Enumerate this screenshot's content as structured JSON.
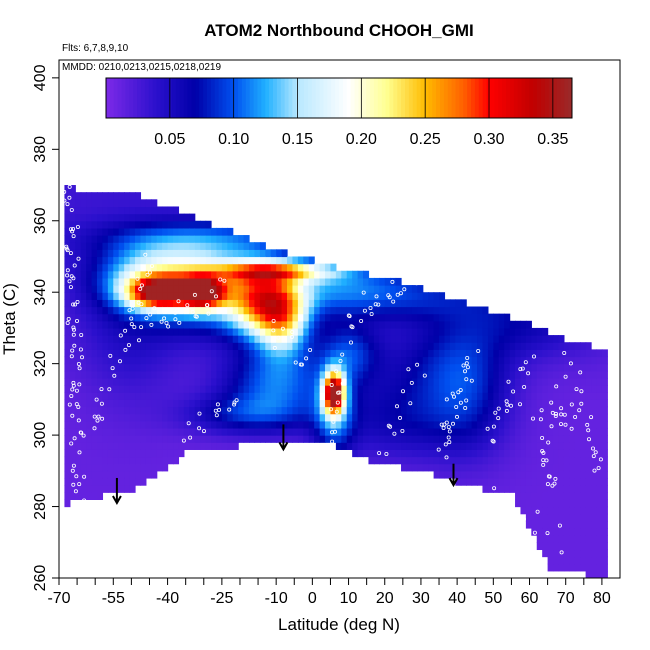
{
  "chart_data": {
    "type": "heatmap",
    "title": "ATOM2 Northbound CHOOH_GMI",
    "xlabel": "Latitude (deg N)",
    "ylabel": "Theta (C)",
    "xlim": [
      -70,
      85
    ],
    "ylim": [
      260,
      405
    ],
    "x_ticks": [
      -70,
      -55,
      -40,
      -25,
      -10,
      0,
      10,
      20,
      30,
      40,
      50,
      60,
      70,
      80
    ],
    "x_tick_labels": [
      "-70",
      "-55",
      "-40",
      "-25",
      "-10",
      "0",
      "10",
      "20",
      "30",
      "40",
      "50",
      "60",
      "70",
      "80"
    ],
    "x_minor_ticks": [
      -65,
      -60,
      -50,
      -45,
      -35,
      -30,
      -20,
      -15,
      -5,
      5,
      15,
      25,
      35,
      45,
      55,
      65,
      75
    ],
    "y_ticks": [
      260,
      280,
      300,
      320,
      340,
      360,
      380,
      400
    ],
    "y_tick_labels": [
      "260",
      "280",
      "300",
      "320",
      "340",
      "360",
      "380",
      "400"
    ],
    "annotations": {
      "flights": "Flts: 6,7,8,9,10",
      "dates": "MMDD: 0210,0213,0215,0218,0219"
    },
    "colorbar": {
      "range": [
        0.0,
        0.365
      ],
      "ticks": [
        0.05,
        0.1,
        0.15,
        0.2,
        0.25,
        0.3,
        0.35
      ],
      "tick_labels": [
        "0.05",
        "0.10",
        "0.15",
        "0.20",
        "0.25",
        "0.30",
        "0.35"
      ],
      "stops": [
        {
          "v": 0.0,
          "c": "#7d2ae8"
        },
        {
          "v": 0.04,
          "c": "#2a10cc"
        },
        {
          "v": 0.07,
          "c": "#0000a8"
        },
        {
          "v": 0.1,
          "c": "#0050f0"
        },
        {
          "v": 0.125,
          "c": "#20b0ff"
        },
        {
          "v": 0.15,
          "c": "#b8e8ff"
        },
        {
          "v": 0.19,
          "c": "#ffffff"
        },
        {
          "v": 0.22,
          "c": "#ffff90"
        },
        {
          "v": 0.25,
          "c": "#ffbb00"
        },
        {
          "v": 0.28,
          "c": "#ff6000"
        },
        {
          "v": 0.3,
          "c": "#ff0000"
        },
        {
          "v": 0.335,
          "c": "#c00000"
        },
        {
          "v": 0.365,
          "c": "#9a2a2a"
        }
      ]
    },
    "domain_top": [
      [
        -66,
        369
      ],
      [
        -50,
        368
      ],
      [
        -30,
        360
      ],
      [
        -10,
        352
      ],
      [
        10,
        346
      ],
      [
        25,
        343
      ],
      [
        40,
        338
      ],
      [
        55,
        333
      ],
      [
        70,
        327
      ],
      [
        81,
        324
      ]
    ],
    "domain_bottom": [
      [
        -69,
        279
      ],
      [
        -65,
        282
      ],
      [
        -50,
        284
      ],
      [
        -35,
        295
      ],
      [
        -20,
        297
      ],
      [
        0,
        299
      ],
      [
        10,
        296
      ],
      [
        15,
        293
      ],
      [
        30,
        290
      ],
      [
        40,
        287
      ],
      [
        50,
        284
      ],
      [
        55,
        284
      ],
      [
        66,
        262
      ],
      [
        72,
        262
      ],
      [
        80,
        260
      ]
    ],
    "features": [
      {
        "x": -42,
        "y": 340,
        "sx": 6,
        "sy": 3,
        "v": 0.24
      },
      {
        "x": -30,
        "y": 340,
        "sx": 4,
        "sy": 3,
        "v": 0.22
      },
      {
        "x": -45,
        "y": 344,
        "sx": 10,
        "sy": 6,
        "v": 0.12
      },
      {
        "x": -30,
        "y": 344,
        "sx": 10,
        "sy": 6,
        "v": 0.11
      },
      {
        "x": -25,
        "y": 335,
        "sx": 14,
        "sy": 6,
        "v": 0.06
      },
      {
        "x": -15,
        "y": 338,
        "sx": 6,
        "sy": 7,
        "v": 0.15
      },
      {
        "x": -8,
        "y": 333,
        "sx": 5,
        "sy": 7,
        "v": 0.17
      },
      {
        "x": -10,
        "y": 346,
        "sx": 12,
        "sy": 2,
        "v": 0.16
      },
      {
        "x": -10,
        "y": 315,
        "sx": 10,
        "sy": 7,
        "v": 0.09
      },
      {
        "x": -18,
        "y": 306,
        "sx": 12,
        "sy": 4,
        "v": 0.06
      },
      {
        "x": 6,
        "y": 312,
        "sx": 2,
        "sy": 4,
        "v": 0.3
      },
      {
        "x": 6,
        "y": 305,
        "sx": 4,
        "sy": 8,
        "v": 0.08
      },
      {
        "x": 10,
        "y": 323,
        "sx": 6,
        "sy": 6,
        "v": 0.07
      },
      {
        "x": 5,
        "y": 342,
        "sx": 18,
        "sy": 5,
        "v": 0.07
      },
      {
        "x": -30,
        "y": 355,
        "sx": 20,
        "sy": 4,
        "v": 0.07
      },
      {
        "x": 25,
        "y": 305,
        "sx": 14,
        "sy": 8,
        "v": 0.05
      },
      {
        "x": 35,
        "y": 320,
        "sx": 12,
        "sy": 8,
        "v": 0.04
      },
      {
        "x": 43,
        "y": 312,
        "sx": 8,
        "sy": 12,
        "v": 0.05
      },
      {
        "x": 58,
        "y": 330,
        "sx": 15,
        "sy": 6,
        "v": 0.035
      },
      {
        "x": 30,
        "y": 338,
        "sx": 25,
        "sy": 5,
        "v": 0.04
      },
      {
        "x": -50,
        "y": 330,
        "sx": 10,
        "sy": 15,
        "v": 0.03
      }
    ],
    "arrows": [
      {
        "x": -54,
        "y_from": 288,
        "y_to": 281
      },
      {
        "x": -8,
        "y_from": 303,
        "y_to": 296
      },
      {
        "x": 39,
        "y_from": 292,
        "y_to": 286
      }
    ],
    "flight_tracks": [
      {
        "x0": -67,
        "y0": 369,
        "x1": -64,
        "y1": 278,
        "n": 70
      },
      {
        "x0": -60,
        "y0": 300,
        "x1": -45,
        "y1": 350,
        "n": 30
      },
      {
        "x0": -48,
        "y0": 330,
        "x1": -25,
        "y1": 340,
        "n": 28
      },
      {
        "x0": -35,
        "y0": 300,
        "x1": -20,
        "y1": 310,
        "n": 14
      },
      {
        "x0": -12,
        "y0": 330,
        "x1": 0,
        "y1": 320,
        "n": 12
      },
      {
        "x0": 5,
        "y0": 300,
        "x1": 10,
        "y1": 330,
        "n": 18
      },
      {
        "x0": 12,
        "y0": 335,
        "x1": 35,
        "y1": 345,
        "n": 24
      },
      {
        "x0": 20,
        "y0": 295,
        "x1": 30,
        "y1": 320,
        "n": 14
      },
      {
        "x0": 35,
        "y0": 295,
        "x1": 45,
        "y1": 322,
        "n": 30
      },
      {
        "x0": 48,
        "y0": 300,
        "x1": 60,
        "y1": 320,
        "n": 20
      },
      {
        "x0": 62,
        "y0": 305,
        "x1": 68,
        "y1": 285,
        "n": 16
      },
      {
        "x0": 66,
        "y0": 310,
        "x1": 70,
        "y1": 300,
        "n": 12
      },
      {
        "x0": 70,
        "y0": 320,
        "x1": 80,
        "y1": 290,
        "n": 20
      },
      {
        "x0": 50,
        "y0": 285,
        "x1": 70,
        "y1": 270,
        "n": 10
      }
    ]
  }
}
